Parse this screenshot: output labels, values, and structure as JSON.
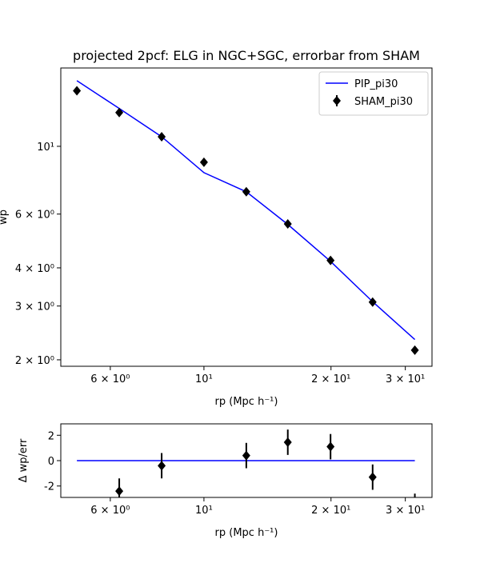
{
  "chart_data": [
    {
      "type": "line",
      "title": "projected 2pcf: ELG in NGC+SGC, errorbar from SHAM",
      "xlabel": "rp (Mpc h⁻¹)",
      "ylabel": "wp",
      "xscale": "log",
      "yscale": "log",
      "x": [
        5,
        6.3,
        7.94,
        10,
        12.6,
        15.8,
        19.95,
        25.1,
        31.6
      ],
      "series": [
        {
          "name": "PIP_pi30",
          "color": "#0000ff",
          "kind": "line",
          "values": [
            16.4,
            13.3,
            10.75,
            8.2,
            7.1,
            5.55,
            4.2,
            3.1,
            2.33
          ]
        },
        {
          "name": "SHAM_pi30",
          "color": "#000000",
          "kind": "marker",
          "values": [
            15.2,
            12.9,
            10.75,
            8.87,
            7.1,
            5.57,
            4.23,
            3.09,
            2.15
          ]
        }
      ],
      "xlim": [
        4.58,
        34.7
      ],
      "ylim": [
        1.905,
        18.05
      ],
      "xticks": [
        {
          "value": 6,
          "label": "6 × 10⁰"
        },
        {
          "value": 10,
          "label": "10¹"
        },
        {
          "value": 20,
          "label": "2 × 10¹"
        },
        {
          "value": 30,
          "label": "3 × 10¹"
        }
      ],
      "yticks": [
        {
          "value": 2,
          "label": "2 × 10⁰"
        },
        {
          "value": 3,
          "label": "3 × 10⁰"
        },
        {
          "value": 4,
          "label": "4 × 10⁰"
        },
        {
          "value": 6,
          "label": "6 × 10⁰"
        },
        {
          "value": 10,
          "label": "10¹"
        }
      ],
      "legend": "upper right"
    },
    {
      "type": "errorbar",
      "xlabel": "rp (Mpc h⁻¹)",
      "ylabel": "Δ wp/err",
      "xscale": "log",
      "yscale": "linear",
      "x": [
        5,
        6.3,
        7.94,
        10,
        12.6,
        15.8,
        19.95,
        25.1,
        31.6
      ],
      "series": [
        {
          "color": "#0000ff",
          "kind": "line",
          "values": [
            0,
            0,
            0,
            0,
            0,
            0,
            0,
            0,
            0
          ]
        },
        {
          "color": "#000000",
          "kind": "marker",
          "values": [
            null,
            -2.4,
            -0.4,
            null,
            0.4,
            1.45,
            1.1,
            -1.3,
            -3.6
          ],
          "errors": [
            null,
            1,
            1,
            null,
            1,
            1,
            1,
            1,
            1
          ]
        }
      ],
      "xlim": [
        4.58,
        34.7
      ],
      "ylim": [
        -2.9,
        2.9
      ],
      "xticks": [
        {
          "value": 6,
          "label": "6 × 10⁰"
        },
        {
          "value": 10,
          "label": "10¹"
        },
        {
          "value": 20,
          "label": "2 × 10¹"
        },
        {
          "value": 30,
          "label": "3 × 10¹"
        }
      ],
      "yticks": [
        -2,
        0,
        2
      ]
    }
  ]
}
